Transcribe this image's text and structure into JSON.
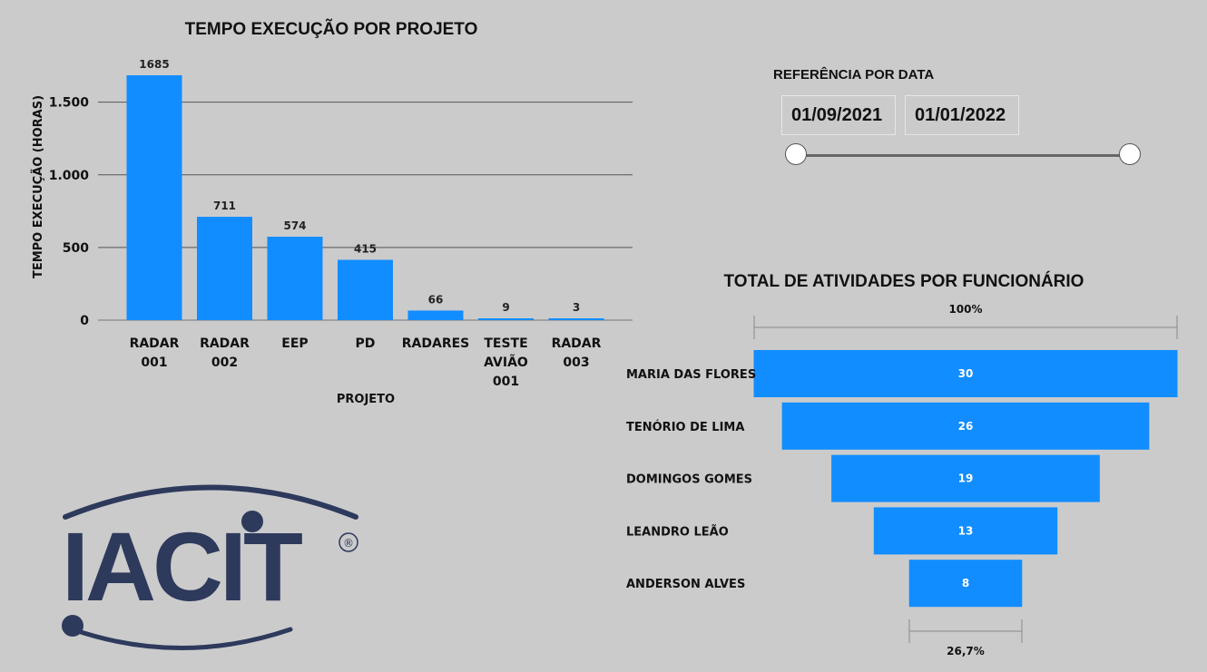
{
  "bar_chart_title": "TEMPO EXECUÇÃO POR PROJETO",
  "funnel_title": "TOTAL DE ATIVIDADES POR FUNCIONÁRIO",
  "slicer": {
    "title": "REFERÊNCIA POR DATA",
    "start_date": "01/09/2021",
    "end_date": "01/01/2022"
  },
  "logo": {
    "text": "IACIT",
    "mark": "®",
    "color": "#2e3a5c"
  },
  "colors": {
    "bar": "#118dff",
    "background": "#cbcbcb"
  },
  "chart_data": [
    {
      "type": "bar",
      "title": "TEMPO EXECUÇÃO POR PROJETO",
      "xlabel": "PROJETO",
      "ylabel": "TEMPO EXECUÇÃO (HORAS)",
      "categories": [
        [
          "RADAR",
          "001"
        ],
        [
          "RADAR",
          "002"
        ],
        [
          "EEP"
        ],
        [
          "PD"
        ],
        [
          "RADARES"
        ],
        [
          "TESTE",
          "AVIÃO",
          "001"
        ],
        [
          "RADAR",
          "003"
        ]
      ],
      "values": [
        1685,
        711,
        574,
        415,
        66,
        9,
        3
      ],
      "data_labels": [
        "1685",
        "711",
        "574",
        "415",
        "66",
        "9",
        "3"
      ],
      "yticks": [
        {
          "value": 0,
          "label": "0"
        },
        {
          "value": 500,
          "label": "500"
        },
        {
          "value": 1000,
          "label": "1.000"
        },
        {
          "value": 1500,
          "label": "1.500"
        }
      ],
      "ylim": [
        0,
        1750
      ],
      "grid": true
    },
    {
      "type": "funnel",
      "title": "TOTAL DE ATIVIDADES POR FUNCIONÁRIO",
      "categories": [
        "MARIA DAS FLORES",
        "TENÓRIO DE LIMA",
        "DOMINGOS GOMES",
        "LEANDRO LEÃO",
        "ANDERSON ALVES"
      ],
      "values": [
        30,
        26,
        19,
        13,
        8
      ],
      "top_percent_label": "100%",
      "bottom_percent_label": "26,7%"
    }
  ]
}
